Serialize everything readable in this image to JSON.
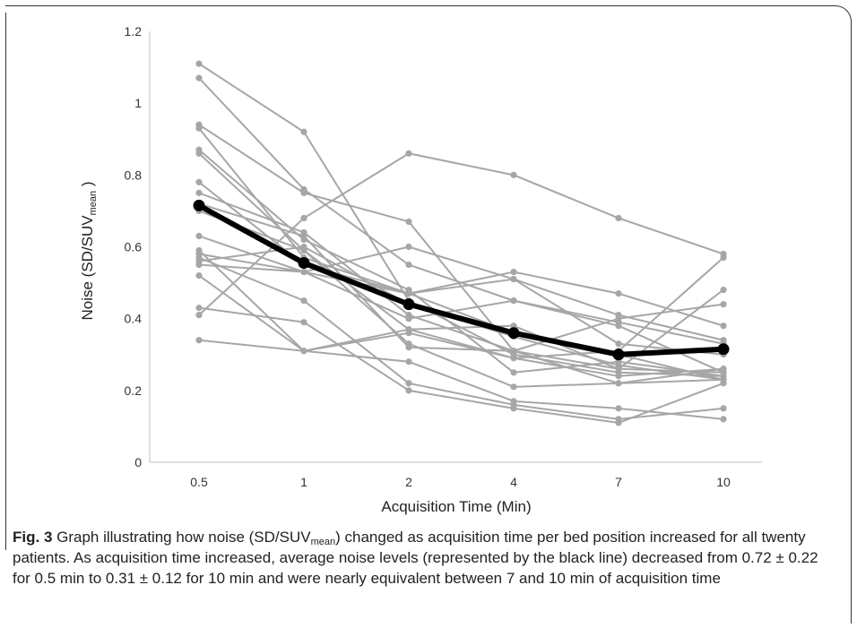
{
  "chart_data": {
    "type": "line",
    "title": "",
    "xlabel": "Acquisition Time (Min)",
    "ylabel": {
      "main": "Noise (SD/SUV",
      "sub": "mean",
      "end": " )"
    },
    "categories": [
      "0.5",
      "1",
      "2",
      "4",
      "7",
      "10"
    ],
    "ylim": [
      0,
      1.2
    ],
    "yticks": [
      0,
      0.2,
      0.4,
      0.6,
      0.8,
      1,
      1.2
    ],
    "ytick_labels": [
      "0",
      "0.2",
      "0.4",
      "0.6",
      "0.8",
      "1",
      "1.2"
    ],
    "grid": false,
    "legend": "none",
    "colors": {
      "patients": "#a6a6a6",
      "average": "#000000"
    },
    "series": [
      {
        "values": [
          1.11,
          0.92,
          0.45,
          0.3,
          0.25,
          0.24
        ]
      },
      {
        "values": [
          1.07,
          0.76,
          0.55,
          0.45,
          0.39,
          0.33
        ]
      },
      {
        "values": [
          0.94,
          0.75,
          0.67,
          0.31,
          0.22,
          0.26
        ]
      },
      {
        "values": [
          0.93,
          0.57,
          0.47,
          0.36,
          0.3,
          0.23
        ]
      },
      {
        "values": [
          0.87,
          0.62,
          0.48,
          0.25,
          0.28,
          0.24
        ]
      },
      {
        "values": [
          0.86,
          0.59,
          0.37,
          0.29,
          0.24,
          0.26
        ]
      },
      {
        "values": [
          0.78,
          0.55,
          0.47,
          0.53,
          0.47,
          0.38
        ]
      },
      {
        "values": [
          0.75,
          0.64,
          0.41,
          0.31,
          0.26,
          0.25
        ]
      },
      {
        "values": [
          0.7,
          0.59,
          0.33,
          0.21,
          0.22,
          0.23
        ]
      },
      {
        "values": [
          0.63,
          0.53,
          0.47,
          0.51,
          0.41,
          0.34
        ]
      },
      {
        "values": [
          0.59,
          0.31,
          0.28,
          0.17,
          0.15,
          0.12
        ]
      },
      {
        "values": [
          0.57,
          0.45,
          0.22,
          0.16,
          0.12,
          0.15
        ]
      },
      {
        "values": [
          0.56,
          0.6,
          0.44,
          0.35,
          0.27,
          0.23
        ]
      },
      {
        "values": [
          0.55,
          0.53,
          0.6,
          0.51,
          0.33,
          0.3
        ]
      },
      {
        "values": [
          0.52,
          0.31,
          0.36,
          0.29,
          0.31,
          0.57
        ]
      },
      {
        "values": [
          0.43,
          0.39,
          0.2,
          0.15,
          0.11,
          0.22
        ]
      },
      {
        "values": [
          0.41,
          0.68,
          0.86,
          0.8,
          0.68,
          0.58
        ]
      },
      {
        "values": [
          0.34,
          0.31,
          0.37,
          0.38,
          0.26,
          0.48
        ]
      },
      {
        "values": [
          0.72,
          0.63,
          0.32,
          0.31,
          0.4,
          0.44
        ]
      },
      {
        "values": [
          0.58,
          0.53,
          0.4,
          0.45,
          0.38,
          0.25
        ]
      },
      {
        "name": "Average",
        "average": true,
        "values": [
          0.715,
          0.555,
          0.44,
          0.36,
          0.3,
          0.315
        ]
      }
    ]
  },
  "caption": {
    "label": "Fig. 3",
    "text_before": " Graph illustrating how noise (SD/SUV",
    "sub": "mean",
    "text_after": ") changed as acquisition time per bed position increased for all twenty patients. As acquisition time increased, average noise levels (represented by the black line) decreased from 0.72 ± 0.22 for 0.5 min to 0.31 ± 0.12 for 10 min and were nearly equivalent between 7 and 10 min of acquisition time"
  }
}
